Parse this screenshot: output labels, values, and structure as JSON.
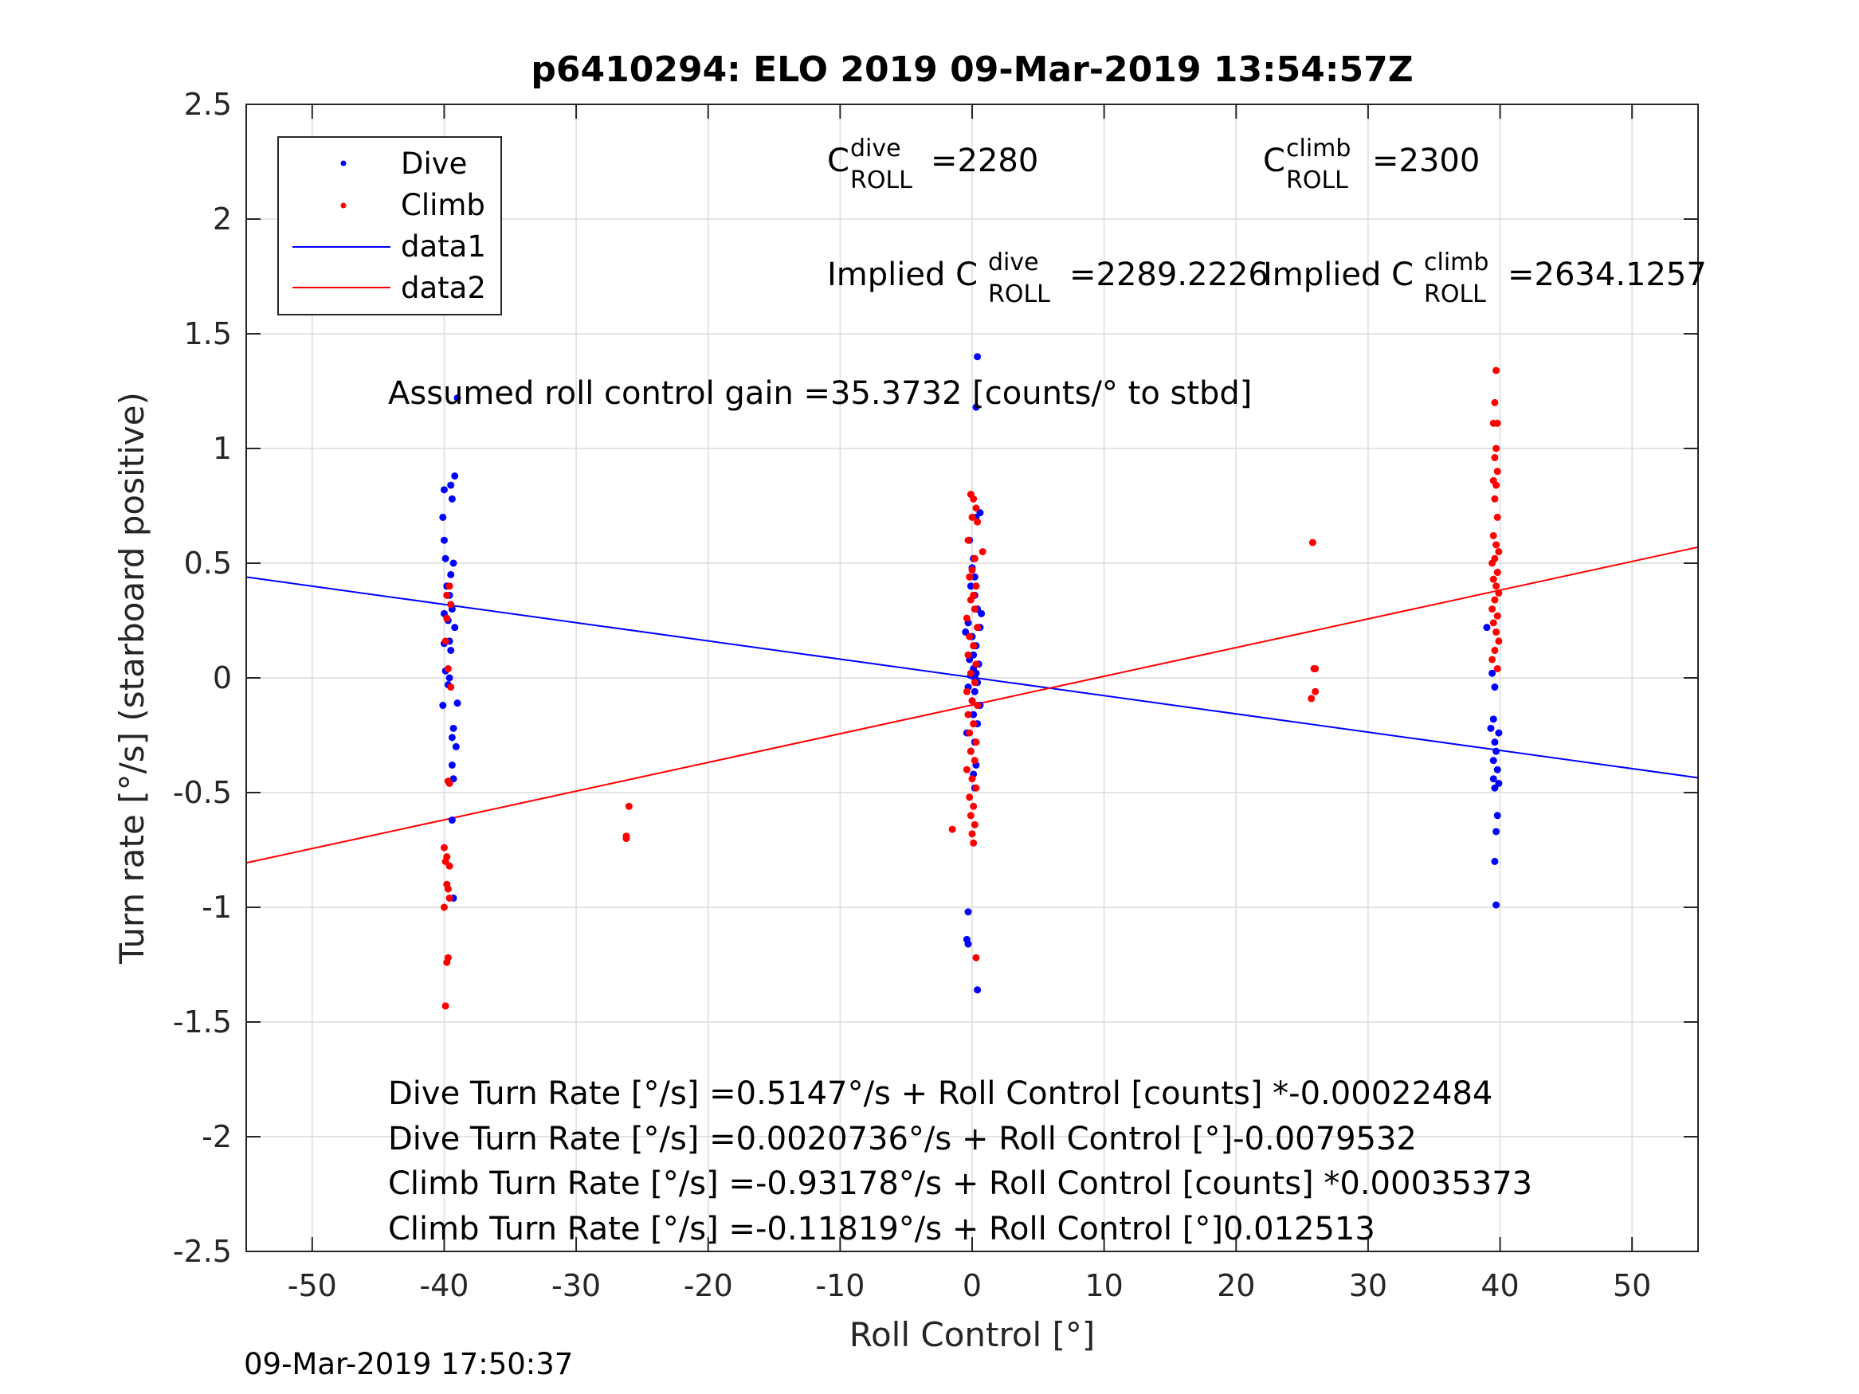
{
  "chart_data": {
    "type": "scatter",
    "title": "p6410294: ELO 2019 09-Mar-2019 13:54:57Z",
    "xlabel": "Roll Control [°]",
    "ylabel": "Turn rate [°/s] (starboard positive)",
    "xlim": [
      -55,
      55
    ],
    "ylim": [
      -2.5,
      2.5
    ],
    "x_ticks": [
      -50,
      -40,
      -30,
      -20,
      -10,
      0,
      10,
      20,
      30,
      40,
      50
    ],
    "y_ticks": [
      -2.5,
      -2,
      -1.5,
      -1,
      -0.5,
      0,
      0.5,
      1,
      1.5,
      2,
      2.5
    ],
    "x_tick_labels": [
      "-50",
      "-40",
      "-30",
      "-20",
      "-10",
      "0",
      "10",
      "20",
      "30",
      "40",
      "50"
    ],
    "y_tick_labels": [
      "-2.5",
      "-2",
      "-1.5",
      "-1",
      "-0.5",
      "0",
      "0.5",
      "1",
      "1.5",
      "2",
      "2.5"
    ],
    "grid": true,
    "legend_position": "top-left",
    "legend": [
      "Dive",
      "Climb",
      "data1",
      "data2"
    ],
    "colors": {
      "dive": "#0000ff",
      "climb": "#ff0000",
      "axes": "#262626",
      "grid": "#dcdcdc"
    },
    "series": [
      {
        "name": "Dive",
        "style": "points",
        "color": "#0000ff",
        "points": [
          [
            -40.0,
            0.82
          ],
          [
            -39.5,
            0.84
          ],
          [
            -39.2,
            0.88
          ],
          [
            -39.4,
            0.78
          ],
          [
            -40.1,
            0.7
          ],
          [
            -40.0,
            0.6
          ],
          [
            -39.9,
            0.52
          ],
          [
            -39.3,
            0.5
          ],
          [
            -39.5,
            0.45
          ],
          [
            -39.8,
            0.4
          ],
          [
            -39.6,
            0.36
          ],
          [
            -39.4,
            0.3
          ],
          [
            -40.0,
            0.28
          ],
          [
            -39.7,
            0.25
          ],
          [
            -39.2,
            0.22
          ],
          [
            -39.6,
            0.16
          ],
          [
            -40.0,
            0.15
          ],
          [
            -39.5,
            0.12
          ],
          [
            -39.9,
            0.03
          ],
          [
            -39.6,
            0.0
          ],
          [
            -39.7,
            -0.03
          ],
          [
            -39.0,
            -0.11
          ],
          [
            -40.1,
            -0.12
          ],
          [
            -39.3,
            -0.22
          ],
          [
            -39.4,
            -0.26
          ],
          [
            -39.1,
            -0.3
          ],
          [
            -39.4,
            -0.38
          ],
          [
            -39.3,
            -0.44
          ],
          [
            -39.4,
            -0.62
          ],
          [
            -39.3,
            -0.96
          ],
          [
            -39.0,
            1.22
          ],
          [
            0.4,
            1.4
          ],
          [
            0.3,
            1.18
          ],
          [
            0.6,
            0.72
          ],
          [
            0.3,
            0.7
          ],
          [
            -0.2,
            0.6
          ],
          [
            0.1,
            0.52
          ],
          [
            0.0,
            0.48
          ],
          [
            0.2,
            0.44
          ],
          [
            -0.1,
            0.4
          ],
          [
            0.2,
            0.36
          ],
          [
            0.4,
            0.3
          ],
          [
            0.7,
            0.28
          ],
          [
            -0.3,
            0.24
          ],
          [
            0.6,
            0.22
          ],
          [
            -0.5,
            0.2
          ],
          [
            0.0,
            0.18
          ],
          [
            0.3,
            0.14
          ],
          [
            0.1,
            0.1
          ],
          [
            -0.2,
            0.08
          ],
          [
            0.5,
            0.06
          ],
          [
            0.1,
            0.04
          ],
          [
            0.3,
            0.02
          ],
          [
            -0.1,
            0.01
          ],
          [
            0.2,
            0.0
          ],
          [
            0.4,
            -0.02
          ],
          [
            -0.3,
            -0.04
          ],
          [
            0.2,
            -0.06
          ],
          [
            0.0,
            -0.1
          ],
          [
            0.6,
            -0.12
          ],
          [
            0.1,
            -0.16
          ],
          [
            0.4,
            -0.2
          ],
          [
            -0.4,
            -0.24
          ],
          [
            0.2,
            -0.28
          ],
          [
            -0.1,
            -0.32
          ],
          [
            0.3,
            -0.38
          ],
          [
            0.1,
            -0.42
          ],
          [
            0.2,
            -0.48
          ],
          [
            -0.3,
            -1.02
          ],
          [
            -0.4,
            -1.14
          ],
          [
            -0.3,
            -1.16
          ],
          [
            0.4,
            -1.36
          ],
          [
            39.0,
            0.22
          ],
          [
            39.4,
            0.02
          ],
          [
            39.6,
            -0.04
          ],
          [
            39.5,
            -0.18
          ],
          [
            39.3,
            -0.22
          ],
          [
            39.9,
            -0.24
          ],
          [
            39.6,
            -0.28
          ],
          [
            39.7,
            -0.32
          ],
          [
            39.5,
            -0.36
          ],
          [
            39.8,
            -0.4
          ],
          [
            39.5,
            -0.44
          ],
          [
            39.9,
            -0.46
          ],
          [
            39.6,
            -0.48
          ],
          [
            39.8,
            -0.6
          ],
          [
            39.7,
            -0.67
          ],
          [
            39.6,
            -0.8
          ],
          [
            39.7,
            -0.99
          ]
        ]
      },
      {
        "name": "Climb",
        "style": "points",
        "color": "#ff0000",
        "points": [
          [
            -39.6,
            0.4
          ],
          [
            -39.8,
            0.36
          ],
          [
            -39.5,
            0.32
          ],
          [
            -39.8,
            0.26
          ],
          [
            -39.9,
            0.16
          ],
          [
            -39.7,
            0.04
          ],
          [
            -39.5,
            -0.04
          ],
          [
            -39.6,
            -0.46
          ],
          [
            -39.7,
            -0.45
          ],
          [
            -40.0,
            -0.74
          ],
          [
            -39.8,
            -0.78
          ],
          [
            -39.9,
            -0.8
          ],
          [
            -39.6,
            -0.82
          ],
          [
            -39.8,
            -0.9
          ],
          [
            -39.7,
            -0.92
          ],
          [
            -40.0,
            -1.0
          ],
          [
            -39.6,
            -0.96
          ],
          [
            -39.7,
            -1.22
          ],
          [
            -39.8,
            -1.24
          ],
          [
            -39.9,
            -1.43
          ],
          [
            -26.0,
            -0.56
          ],
          [
            -26.2,
            -0.69
          ],
          [
            -26.2,
            -0.7
          ],
          [
            -0.1,
            0.8
          ],
          [
            0.1,
            0.78
          ],
          [
            0.3,
            0.74
          ],
          [
            0.0,
            0.7
          ],
          [
            0.4,
            0.68
          ],
          [
            -0.3,
            0.6
          ],
          [
            0.8,
            0.55
          ],
          [
            0.2,
            0.52
          ],
          [
            0.0,
            0.47
          ],
          [
            -0.2,
            0.44
          ],
          [
            0.3,
            0.4
          ],
          [
            0.1,
            0.36
          ],
          [
            -0.1,
            0.34
          ],
          [
            0.2,
            0.3
          ],
          [
            -0.4,
            0.26
          ],
          [
            0.4,
            0.22
          ],
          [
            -0.2,
            0.18
          ],
          [
            0.1,
            0.14
          ],
          [
            -0.3,
            0.1
          ],
          [
            0.3,
            0.06
          ],
          [
            -0.1,
            0.02
          ],
          [
            0.2,
            -0.02
          ],
          [
            -0.4,
            -0.06
          ],
          [
            0.0,
            -0.1
          ],
          [
            0.4,
            -0.12
          ],
          [
            -0.3,
            -0.16
          ],
          [
            0.1,
            -0.2
          ],
          [
            -0.2,
            -0.24
          ],
          [
            0.3,
            -0.28
          ],
          [
            -0.1,
            -0.32
          ],
          [
            0.2,
            -0.36
          ],
          [
            -0.4,
            -0.4
          ],
          [
            0.0,
            -0.44
          ],
          [
            0.3,
            -0.48
          ],
          [
            -0.2,
            -0.52
          ],
          [
            0.1,
            -0.56
          ],
          [
            -0.1,
            -0.6
          ],
          [
            0.2,
            -0.64
          ],
          [
            0.0,
            -0.68
          ],
          [
            0.1,
            -0.72
          ],
          [
            -1.5,
            -0.66
          ],
          [
            0.3,
            -1.22
          ],
          [
            25.8,
            0.59
          ],
          [
            26.0,
            0.04
          ],
          [
            25.9,
            0.04
          ],
          [
            26.0,
            -0.06
          ],
          [
            25.7,
            -0.09
          ],
          [
            39.7,
            1.34
          ],
          [
            39.6,
            1.2
          ],
          [
            39.5,
            1.11
          ],
          [
            39.8,
            1.11
          ],
          [
            39.7,
            1.0
          ],
          [
            39.6,
            0.96
          ],
          [
            39.8,
            0.9
          ],
          [
            39.5,
            0.86
          ],
          [
            39.7,
            0.84
          ],
          [
            39.6,
            0.78
          ],
          [
            39.8,
            0.7
          ],
          [
            39.5,
            0.62
          ],
          [
            39.7,
            0.58
          ],
          [
            39.9,
            0.55
          ],
          [
            39.6,
            0.52
          ],
          [
            39.4,
            0.5
          ],
          [
            39.8,
            0.46
          ],
          [
            39.5,
            0.43
          ],
          [
            39.7,
            0.4
          ],
          [
            39.9,
            0.37
          ],
          [
            39.6,
            0.34
          ],
          [
            39.4,
            0.3
          ],
          [
            39.8,
            0.27
          ],
          [
            39.5,
            0.24
          ],
          [
            39.7,
            0.2
          ],
          [
            39.9,
            0.16
          ],
          [
            39.6,
            0.12
          ],
          [
            39.4,
            0.08
          ],
          [
            39.8,
            0.04
          ]
        ]
      },
      {
        "name": "data1",
        "style": "line",
        "color": "#0000ff",
        "intercept": 0.0020736,
        "slope": -0.0079532,
        "x": [
          -55,
          55
        ]
      },
      {
        "name": "data2",
        "style": "line",
        "color": "#ff0000",
        "intercept": -0.11819,
        "slope": 0.012513,
        "x": [
          -55,
          55
        ]
      }
    ],
    "annotations": {
      "c_roll_dive": {
        "base": "C",
        "sup": "dive",
        "sub": "ROLL",
        "value": "=2280"
      },
      "c_roll_climb": {
        "base": "C",
        "sup": "climb",
        "sub": "ROLL",
        "value": "=2300"
      },
      "implied_dive": {
        "prefix": "Implied C",
        "sup": "dive",
        "sub": "ROLL",
        "value": "=2289.2226"
      },
      "implied_climb": {
        "prefix": "Implied C",
        "sup": "climb",
        "sub": "ROLL",
        "value": "=2634.1257"
      },
      "gain": "Assumed roll control gain =35.3732 [counts/° to stbd]",
      "equations": [
        "Dive Turn Rate [°/s] =0.5147°/s + Roll Control [counts] *-0.00022484",
        "Dive Turn Rate [°/s] =0.0020736°/s + Roll Control [°]-0.0079532",
        "Climb Turn Rate [°/s] =-0.93178°/s + Roll Control [counts] *0.00035373",
        "Climb Turn Rate [°/s] =-0.11819°/s + Roll Control [°]0.012513"
      ]
    }
  },
  "footer": {
    "timestamp": "09-Mar-2019 17:50:37"
  }
}
